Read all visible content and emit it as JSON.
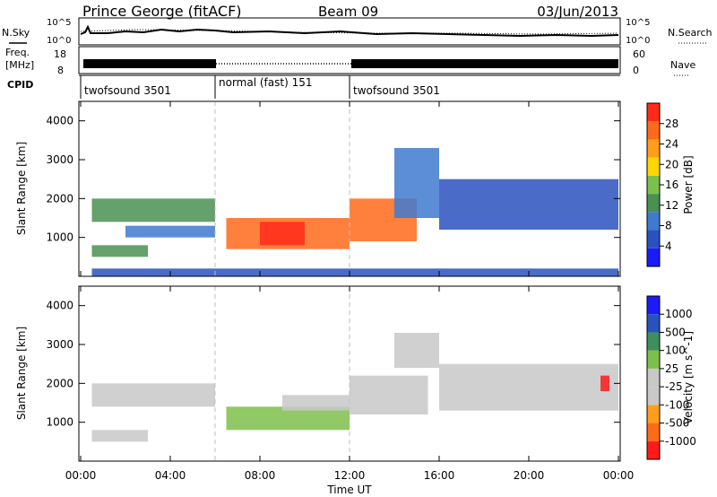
{
  "header": {
    "station": "Prince George (fitACF)",
    "beam": "Beam 09",
    "date": "03/Jun/2013"
  },
  "noise_panel": {
    "left_label": "N.Sky",
    "right_label": "N.Search",
    "tick_top": "10^5",
    "tick_bottom": "10^0"
  },
  "freq_panel": {
    "left_label_1": "Freq.",
    "left_label_2": "[MHz]",
    "right_label": "Nave",
    "left_tick_top": "18",
    "left_tick_bottom": "8",
    "right_tick_top": "60",
    "right_tick_bottom": "0"
  },
  "cpid": {
    "label": "CPID",
    "segments": [
      {
        "name": "twofsound 3501",
        "start_hour": 0,
        "end_hour": 6
      },
      {
        "name": "normal (fast) 151",
        "start_hour": 6,
        "end_hour": 12
      },
      {
        "name": "twofsound 3501",
        "start_hour": 12,
        "end_hour": 24
      }
    ]
  },
  "axes": {
    "x_label": "Time UT",
    "x_ticks": [
      "00:00",
      "04:00",
      "08:00",
      "12:00",
      "16:00",
      "20:00",
      "00:00"
    ],
    "y_label": "Slant Range [km]",
    "y_ticks": [
      "1000",
      "2000",
      "3000",
      "4000"
    ]
  },
  "colors": {
    "power": [
      "#1a1aff",
      "#2a52be",
      "#3e7ad0",
      "#4a9050",
      "#7cc04a",
      "#ffd700",
      "#ff9e1a",
      "#ff6a1a",
      "#ff2a1a"
    ],
    "velocity": [
      "#ff1a1a",
      "#ff6a1a",
      "#ff9e1a",
      "#c8c8c8",
      "#c8c8c8",
      "#7cc04a",
      "#3e8f5e",
      "#2a52be",
      "#1a1aff"
    ],
    "gridline": "#bfbfbf"
  },
  "chart_data": [
    {
      "type": "heatmap",
      "title": "",
      "xlabel": "Time UT",
      "ylabel": "Slant Range [km]",
      "x_range_hours": [
        0,
        24
      ],
      "ylim": [
        0,
        4500
      ],
      "colorbar_label": "Power [dB]",
      "colorbar_ticks": [
        "4",
        "8",
        "12",
        "16",
        "20",
        "24",
        "28"
      ],
      "colorbar_range": [
        0,
        32
      ],
      "echo_regions": [
        {
          "t_start": 0.5,
          "t_end": 3.0,
          "r_start": 500,
          "r_end": 800,
          "value": 13
        },
        {
          "t_start": 0.5,
          "t_end": 6.0,
          "r_start": 1400,
          "r_end": 2000,
          "value": 12
        },
        {
          "t_start": 2.0,
          "t_end": 6.0,
          "r_start": 1000,
          "r_end": 1300,
          "value": 8
        },
        {
          "t_start": 6.5,
          "t_end": 12.0,
          "r_start": 700,
          "r_end": 1500,
          "value": 27
        },
        {
          "t_start": 8.0,
          "t_end": 10.0,
          "r_start": 800,
          "r_end": 1400,
          "value": 29
        },
        {
          "t_start": 12.0,
          "t_end": 15.0,
          "r_start": 900,
          "r_end": 2000,
          "value": 25
        },
        {
          "t_start": 14.0,
          "t_end": 16.0,
          "r_start": 1500,
          "r_end": 3300,
          "value": 10
        },
        {
          "t_start": 16.0,
          "t_end": 24.0,
          "r_start": 1200,
          "r_end": 2500,
          "value": 6
        },
        {
          "t_start": 0.5,
          "t_end": 24.0,
          "r_start": 0,
          "r_end": 200,
          "value": 5
        }
      ]
    },
    {
      "type": "heatmap",
      "title": "",
      "xlabel": "Time UT",
      "ylabel": "Slant Range [km]",
      "x_range_hours": [
        0,
        24
      ],
      "ylim": [
        0,
        4500
      ],
      "colorbar_label": "Velocity [m s^-1]",
      "colorbar_ticks": [
        "-1000",
        "-500",
        "-100",
        "-25",
        "25",
        "100",
        "500",
        "1000"
      ],
      "colorbar_range": [
        -1200,
        1200
      ],
      "echo_regions": [
        {
          "t_start": 0.5,
          "t_end": 3.0,
          "r_start": 500,
          "r_end": 800,
          "value": -300
        },
        {
          "t_start": 0.5,
          "t_end": 6.0,
          "r_start": 1400,
          "r_end": 2000,
          "value": 0
        },
        {
          "t_start": 6.5,
          "t_end": 12.0,
          "r_start": 800,
          "r_end": 1400,
          "value": 300
        },
        {
          "t_start": 9.0,
          "t_end": 12.0,
          "r_start": 1300,
          "r_end": 1700,
          "value": -200
        },
        {
          "t_start": 12.0,
          "t_end": 15.5,
          "r_start": 1200,
          "r_end": 2200,
          "value": -400
        },
        {
          "t_start": 14.0,
          "t_end": 16.0,
          "r_start": 2400,
          "r_end": 3300,
          "value": -300
        },
        {
          "t_start": 16.0,
          "t_end": 24.0,
          "r_start": 1300,
          "r_end": 2500,
          "value": 0
        },
        {
          "t_start": 23.2,
          "t_end": 23.6,
          "r_start": 1800,
          "r_end": 2200,
          "value": -1000
        }
      ]
    }
  ]
}
